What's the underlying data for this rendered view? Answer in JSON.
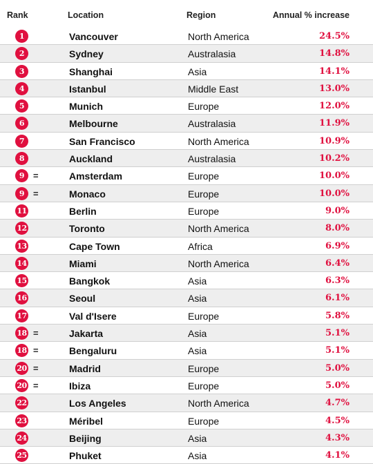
{
  "header": {
    "rank": "Rank",
    "location": "Location",
    "region": "Region",
    "increase": "Annual % increase"
  },
  "colors": {
    "accent": "#e0103f",
    "row_shade": "#eeeeee"
  },
  "rows": [
    {
      "rank": "1",
      "tie": "",
      "location": "Vancouver",
      "region": "North America",
      "increase": "24.5%"
    },
    {
      "rank": "2",
      "tie": "",
      "location": "Sydney",
      "region": "Australasia",
      "increase": "14.8%"
    },
    {
      "rank": "3",
      "tie": "",
      "location": "Shanghai",
      "region": "Asia",
      "increase": "14.1%"
    },
    {
      "rank": "4",
      "tie": "",
      "location": "Istanbul",
      "region": "Middle East",
      "increase": "13.0%"
    },
    {
      "rank": "5",
      "tie": "",
      "location": "Munich",
      "region": "Europe",
      "increase": "12.0%"
    },
    {
      "rank": "6",
      "tie": "",
      "location": "Melbourne",
      "region": "Australasia",
      "increase": "11.9%"
    },
    {
      "rank": "7",
      "tie": "",
      "location": "San Francisco",
      "region": "North America",
      "increase": "10.9%"
    },
    {
      "rank": "8",
      "tie": "",
      "location": "Auckland",
      "region": "Australasia",
      "increase": "10.2%"
    },
    {
      "rank": "9",
      "tie": "=",
      "location": "Amsterdam",
      "region": "Europe",
      "increase": "10.0%"
    },
    {
      "rank": "9",
      "tie": "=",
      "location": "Monaco",
      "region": "Europe",
      "increase": "10.0%"
    },
    {
      "rank": "11",
      "tie": "",
      "location": "Berlin",
      "region": "Europe",
      "increase": "9.0%"
    },
    {
      "rank": "12",
      "tie": "",
      "location": "Toronto",
      "region": "North America",
      "increase": "8.0%"
    },
    {
      "rank": "13",
      "tie": "",
      "location": "Cape Town",
      "region": "Africa",
      "increase": "6.9%"
    },
    {
      "rank": "14",
      "tie": "",
      "location": "Miami",
      "region": "North America",
      "increase": "6.4%"
    },
    {
      "rank": "15",
      "tie": "",
      "location": "Bangkok",
      "region": "Asia",
      "increase": "6.3%"
    },
    {
      "rank": "16",
      "tie": "",
      "location": "Seoul",
      "region": "Asia",
      "increase": "6.1%"
    },
    {
      "rank": "17",
      "tie": "",
      "location": "Val d'Isere",
      "region": "Europe",
      "increase": "5.8%"
    },
    {
      "rank": "18",
      "tie": "=",
      "location": "Jakarta",
      "region": "Asia",
      "increase": "5.1%"
    },
    {
      "rank": "18",
      "tie": "=",
      "location": "Bengaluru",
      "region": "Asia",
      "increase": "5.1%"
    },
    {
      "rank": "20",
      "tie": "=",
      "location": "Madrid",
      "region": "Europe",
      "increase": "5.0%"
    },
    {
      "rank": "20",
      "tie": "=",
      "location": "Ibiza",
      "region": "Europe",
      "increase": "5.0%"
    },
    {
      "rank": "22",
      "tie": "",
      "location": "Los Angeles",
      "region": "North America",
      "increase": "4.7%"
    },
    {
      "rank": "23",
      "tie": "",
      "location": "Méribel",
      "region": "Europe",
      "increase": "4.5%"
    },
    {
      "rank": "24",
      "tie": "",
      "location": "Beijing",
      "region": "Asia",
      "increase": "4.3%"
    },
    {
      "rank": "25",
      "tie": "",
      "location": "Phuket",
      "region": "Asia",
      "increase": "4.1%"
    }
  ]
}
